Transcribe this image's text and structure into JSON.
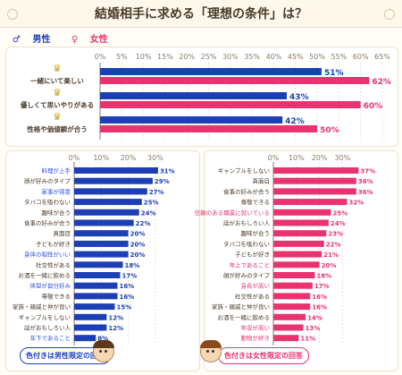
{
  "title": "結婚相手に求める「理想の条件」は？",
  "legend": {
    "male": "男性",
    "female": "女性",
    "male_color": "#1d3fb5",
    "female_color": "#e8336f"
  },
  "chart_data": [
    {
      "type": "bar",
      "orientation": "horizontal",
      "xlim": [
        0,
        65
      ],
      "ticks": [
        "0%",
        "5%",
        "10%",
        "15%",
        "20%",
        "25%",
        "30%",
        "35%",
        "40%",
        "45%",
        "50%",
        "55%",
        "60%",
        "65%"
      ],
      "categories": [
        "一緒にいて楽しい",
        "優しくて思いやりがある",
        "性格や価値観が合う"
      ],
      "series": [
        {
          "name": "男性",
          "values": [
            51,
            43,
            42
          ],
          "labels": [
            "51%",
            "43%",
            "42%"
          ],
          "color": "#1d3fb5"
        },
        {
          "name": "女性",
          "values": [
            62,
            60,
            50
          ],
          "labels": [
            "62%",
            "60%",
            "50%"
          ],
          "color": "#e8336f"
        }
      ]
    },
    {
      "type": "bar",
      "orientation": "horizontal",
      "xlim": [
        0,
        33
      ],
      "ticks": [
        "0%",
        "10%",
        "20%",
        "30%"
      ],
      "categories": [
        "料理が上手",
        "顔が好みのタイプ",
        "家事が得意",
        "タバコを吸わない",
        "趣味が合う",
        "食事の好みが合う",
        "真面目",
        "子どもが好き",
        "身体の相性がいい",
        "社交性がある",
        "お酒を一緒に飲める",
        "体型が自分好み",
        "尊敬できる",
        "家族・親戚と仲が良い",
        "ギャンブルをしない",
        "話がおもしろい人",
        "年下であること"
      ],
      "highlight": [
        true,
        false,
        true,
        false,
        false,
        false,
        false,
        false,
        true,
        false,
        false,
        true,
        false,
        false,
        false,
        false,
        true
      ],
      "highlight_color": "#2a53e0",
      "values": [
        31,
        29,
        27,
        25,
        24,
        22,
        20,
        20,
        20,
        18,
        17,
        16,
        16,
        15,
        12,
        12,
        8
      ],
      "labels": [
        "31%",
        "29%",
        "27%",
        "25%",
        "24%",
        "22%",
        "20%",
        "20%",
        "20%",
        "18%",
        "17%",
        "16%",
        "16%",
        "15%",
        "12%",
        "12%",
        "8%"
      ],
      "color": "#1d3fb5"
    },
    {
      "type": "bar",
      "orientation": "horizontal",
      "xlim": [
        0,
        38
      ],
      "ticks": [
        "0%",
        "10%",
        "20%",
        "30%"
      ],
      "categories": [
        "ギャンブルをしない",
        "真面目",
        "食事の好みが合う",
        "尊敬できる",
        "信頼のある職業に就いている",
        "話がおもしろい人",
        "趣味が合う",
        "タバコを吸わない",
        "子どもが好き",
        "年上であること",
        "顔が好みのタイプ",
        "身長が高い",
        "社交性がある",
        "家族・親戚と仲が良い",
        "お酒を一緒に飲める",
        "年収が高い",
        "動物が好き"
      ],
      "highlight": [
        false,
        false,
        false,
        false,
        true,
        false,
        false,
        false,
        false,
        true,
        false,
        true,
        false,
        false,
        false,
        true,
        true
      ],
      "highlight_color": "#e8336f",
      "values": [
        37,
        36,
        36,
        32,
        25,
        24,
        23,
        22,
        21,
        20,
        18,
        17,
        16,
        16,
        14,
        13,
        11
      ],
      "labels": [
        "37%",
        "36%",
        "36%",
        "32%",
        "25%",
        "24%",
        "23%",
        "22%",
        "21%",
        "20%",
        "18%",
        "17%",
        "16%",
        "16%",
        "14%",
        "13%",
        "11%"
      ],
      "color": "#e8336f"
    }
  ],
  "notes": {
    "male": "色付きは男性限定の回答",
    "female": "色付きは女性限定の回答"
  }
}
